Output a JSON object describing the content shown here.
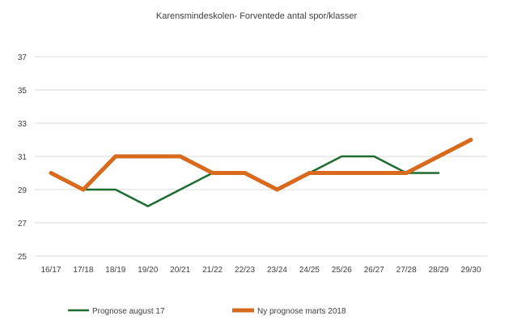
{
  "chart_data": {
    "type": "line",
    "title": "Karensmindeskolen- Forventede antal spor/klasser",
    "xlabel": "",
    "ylabel": "",
    "categories": [
      "16/17",
      "17/18",
      "18/19",
      "19/20",
      "20/21",
      "21/22",
      "22/23",
      "23/24",
      "24/25",
      "25/26",
      "26/27",
      "27/28",
      "28/29",
      "29/30"
    ],
    "y_ticks": [
      "25",
      "27",
      "29",
      "31",
      "33",
      "35",
      "37"
    ],
    "ylim": [
      25,
      37
    ],
    "grid": true,
    "legend_position": "bottom",
    "series": [
      {
        "name": "Prognose august 17",
        "color": "#1e6b2f",
        "values": [
          30,
          29,
          29,
          28,
          29,
          30,
          30,
          29,
          30,
          31,
          31,
          30,
          30,
          null
        ]
      },
      {
        "name": "Ny prognose marts 2018",
        "color": "#d86a1e",
        "values": [
          30,
          29,
          31,
          31,
          31,
          30,
          30,
          29,
          30,
          30,
          30,
          30,
          31,
          32
        ]
      }
    ]
  }
}
